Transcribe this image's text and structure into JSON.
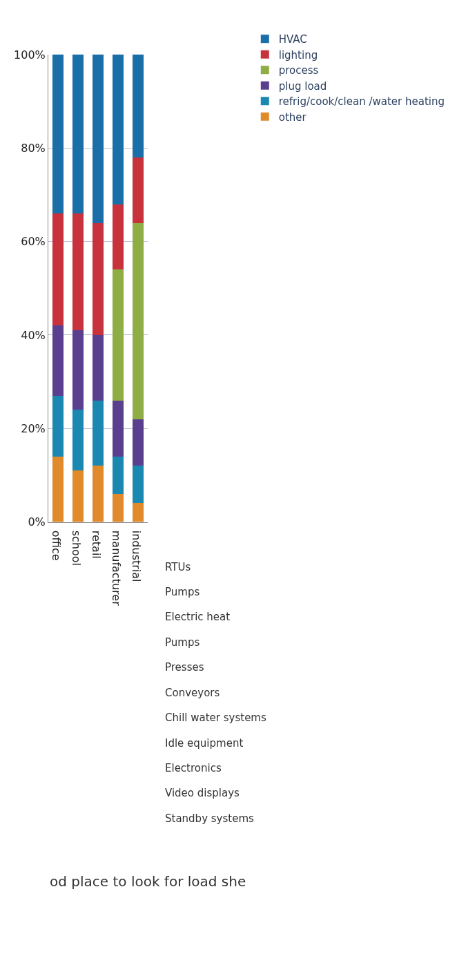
{
  "chart_data": {
    "type": "bar",
    "stacked": true,
    "categories": [
      "office",
      "school",
      "retail",
      "manufacturer",
      "industrial"
    ],
    "series": [
      {
        "name": "other",
        "color": "#e08a2c",
        "values": [
          14,
          11,
          12,
          6,
          4
        ]
      },
      {
        "name": "refrig/cook/clean /water heating",
        "color": "#1a88b0",
        "values": [
          13,
          13,
          14,
          8,
          8
        ]
      },
      {
        "name": "plug load",
        "color": "#5b3f8f",
        "values": [
          15,
          17,
          14,
          12,
          10
        ]
      },
      {
        "name": "process",
        "color": "#8fad45",
        "values": [
          0,
          0,
          0,
          28,
          42
        ]
      },
      {
        "name": "lighting",
        "color": "#c8323c",
        "values": [
          24,
          25,
          24,
          14,
          14
        ]
      },
      {
        "name": "HVAC",
        "color": "#1a6fa8",
        "values": [
          34,
          34,
          36,
          32,
          22
        ]
      }
    ],
    "ylim": [
      0,
      100
    ],
    "yticks": [
      {
        "value": 0,
        "label": "0%"
      },
      {
        "value": 20,
        "label": "20%"
      },
      {
        "value": 40,
        "label": "40%"
      },
      {
        "value": 60,
        "label": "60%"
      },
      {
        "value": 80,
        "label": "80%"
      },
      {
        "value": 100,
        "label": "100%"
      }
    ],
    "grid": "y",
    "legend": "right",
    "annotations": [
      "RTUs",
      "Pumps",
      "Electric heat",
      "Pumps",
      "Presses",
      "Conveyors",
      "Chill water systems",
      "Idle equipment",
      "Electronics",
      "Video displays",
      "Standby systems",
      "od place to look for load she"
    ]
  }
}
